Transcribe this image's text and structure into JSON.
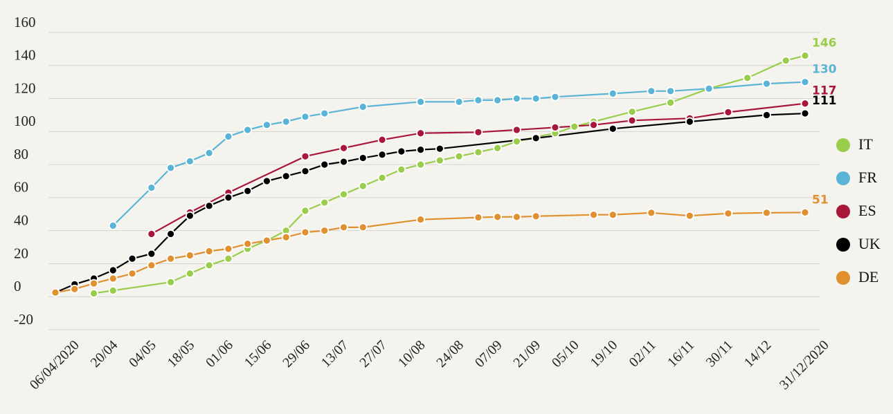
{
  "chart_data": {
    "type": "line",
    "categories": [
      "06/04/2020",
      null,
      "20/04",
      null,
      "04/05",
      null,
      "18/05",
      null,
      "01/06",
      null,
      "15/06",
      null,
      "29/06",
      null,
      "13/07",
      null,
      "27/07",
      null,
      "10/08",
      null,
      "24/08",
      null,
      "07/09",
      null,
      "21/09",
      null,
      "05/10",
      null,
      "19/10",
      null,
      "02/11",
      null,
      "16/11",
      null,
      "30/11",
      null,
      "14/12",
      null,
      null,
      "31/12/2020"
    ],
    "ylim": [
      -20,
      160
    ],
    "yticks": [
      -20,
      0,
      20,
      40,
      60,
      80,
      100,
      120,
      140,
      160
    ],
    "grid": true,
    "connect_gaps": true,
    "legend": "right",
    "series": [
      {
        "name": "IT",
        "color": "#9acd4c",
        "values": [
          null,
          null,
          2,
          3.7,
          null,
          null,
          8.8,
          14,
          19,
          23,
          29,
          34,
          40,
          52,
          57,
          62,
          67,
          72,
          77,
          80,
          82.5,
          85,
          87.5,
          90,
          94,
          96.7,
          99,
          103,
          106,
          null,
          112,
          null,
          117.5,
          null,
          126,
          null,
          132.5,
          null,
          143,
          146
        ]
      },
      {
        "name": "FR",
        "color": "#5ab4d6",
        "values": [
          null,
          null,
          null,
          43,
          null,
          66,
          78,
          82,
          87,
          97,
          101,
          104,
          106,
          109,
          111,
          null,
          115,
          null,
          null,
          118,
          null,
          118,
          119,
          119,
          120,
          120,
          121,
          null,
          null,
          123,
          null,
          124.5,
          124.5,
          null,
          126,
          null,
          null,
          129,
          null,
          130
        ]
      },
      {
        "name": "ES",
        "color": "#a8173a",
        "values": [
          null,
          null,
          null,
          null,
          null,
          38,
          null,
          51,
          null,
          63,
          null,
          null,
          null,
          85,
          null,
          90,
          null,
          95,
          null,
          99,
          null,
          null,
          99.6,
          null,
          101,
          null,
          102.5,
          null,
          104,
          null,
          106.7,
          null,
          null,
          108,
          null,
          111.7,
          null,
          null,
          null,
          117
        ]
      },
      {
        "name": "UK",
        "color": "#000000",
        "values": [
          2.5,
          7.5,
          11,
          16,
          23,
          26,
          38,
          49,
          55,
          60,
          64,
          70,
          73,
          76,
          80,
          81.7,
          84,
          86,
          88,
          89,
          89.6,
          null,
          null,
          null,
          null,
          96,
          null,
          null,
          null,
          101.7,
          null,
          null,
          null,
          106,
          null,
          null,
          null,
          110,
          null,
          111
        ]
      },
      {
        "name": "DE",
        "color": "#e0902f",
        "values": [
          2.5,
          4.6,
          8,
          11,
          14,
          19,
          23,
          25,
          27.5,
          29,
          32,
          34,
          36,
          39,
          40,
          42,
          42,
          null,
          null,
          46.7,
          null,
          null,
          48,
          48.3,
          48.3,
          48.7,
          null,
          null,
          49.6,
          49.6,
          null,
          50.8,
          null,
          49,
          null,
          50.4,
          null,
          50.8,
          null,
          51
        ]
      }
    ]
  }
}
